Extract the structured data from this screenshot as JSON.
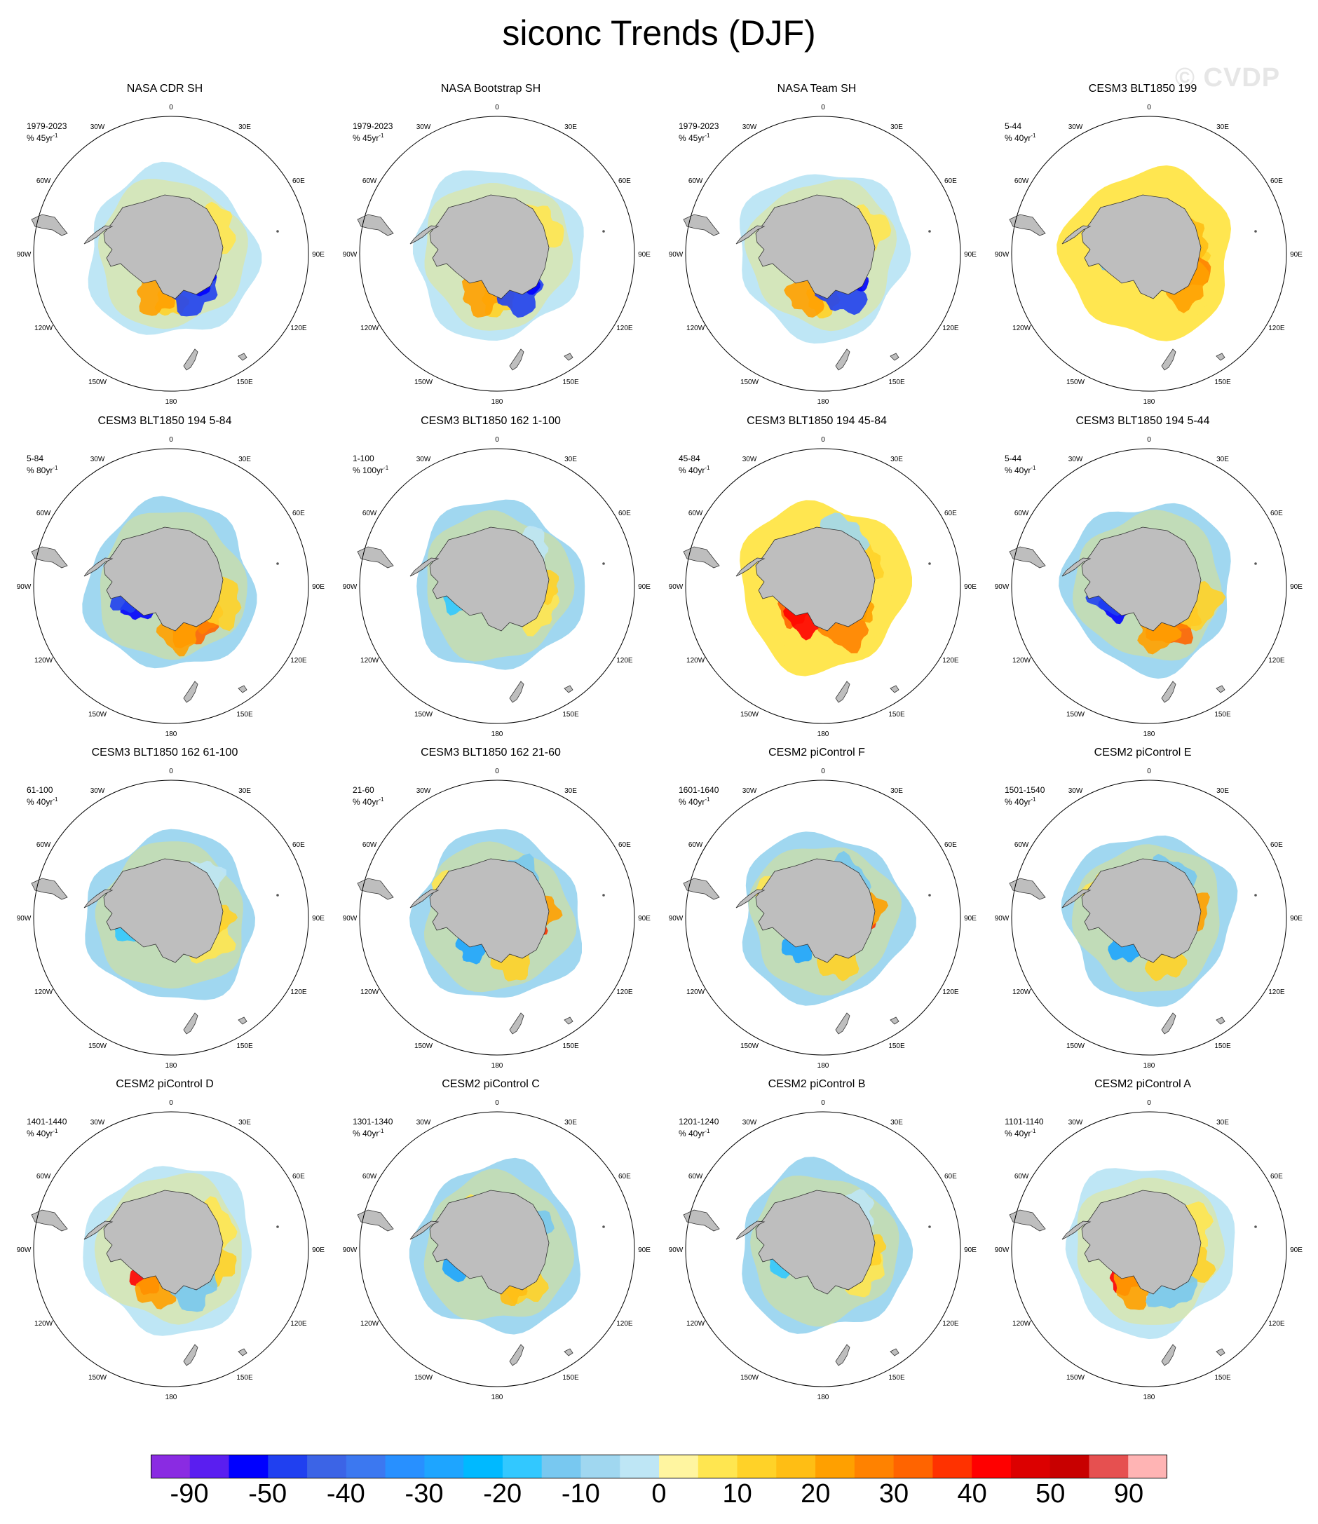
{
  "title": "siconc Trends (DJF)",
  "watermark": "© CVDP",
  "chart_data": {
    "type": "heatmap",
    "projection": "south polar stereographic",
    "variable": "siconc",
    "season": "DJF",
    "longitude_labels": [
      "0",
      "30E",
      "60E",
      "90E",
      "120E",
      "150E",
      "180",
      "150W",
      "120W",
      "90W",
      "60W",
      "30W"
    ],
    "colorbar": {
      "tick_labels": [
        "-90",
        "-50",
        "-40",
        "-30",
        "-20",
        "-10",
        "0",
        "10",
        "20",
        "30",
        "40",
        "50",
        "90"
      ],
      "colors": [
        "#8a2be2",
        "#5a1ef0",
        "#0000ff",
        "#2040f0",
        "#3c64e6",
        "#3c78f0",
        "#2890ff",
        "#1ea5ff",
        "#00b9ff",
        "#32c8ff",
        "#78c8f0",
        "#a0d7f0",
        "#bee6f5",
        "#fff5a0",
        "#ffe650",
        "#ffd228",
        "#ffbe14",
        "#ffa000",
        "#ff8200",
        "#ff6400",
        "#ff3200",
        "#ff0000",
        "#dc0000",
        "#c80000",
        "#e65050",
        "#ffb4b4"
      ]
    },
    "panels": [
      {
        "title": "NASA CDR SH",
        "years": "1979-2023",
        "units": "% 45yr",
        "pattern": "obs"
      },
      {
        "title": "NASA Bootstrap SH",
        "years": "1979-2023",
        "units": "% 45yr",
        "pattern": "obs"
      },
      {
        "title": "NASA Team SH",
        "years": "1979-2023",
        "units": "% 45yr",
        "pattern": "obs"
      },
      {
        "title": "CESM3 BLT1850 199",
        "years": "5-44",
        "units": "% 40yr",
        "pattern": "pos"
      },
      {
        "title": "CESM3 BLT1850 194 5-84",
        "years": "5-84",
        "units": "% 80yr",
        "pattern": "dipole"
      },
      {
        "title": "CESM3 BLT1850 162 1-100",
        "years": "1-100",
        "units": "% 100yr",
        "pattern": "neg"
      },
      {
        "title": "CESM3 BLT1850 194 45-84",
        "years": "45-84",
        "units": "% 40yr",
        "pattern": "strongpos"
      },
      {
        "title": "CESM3 BLT1850 194 5-44",
        "years": "5-44",
        "units": "% 40yr",
        "pattern": "dipole"
      },
      {
        "title": "CESM3 BLT1850 162 61-100",
        "years": "61-100",
        "units": "% 40yr",
        "pattern": "neg"
      },
      {
        "title": "CESM3 BLT1850 162 21-60",
        "years": "21-60",
        "units": "% 40yr",
        "pattern": "mixed"
      },
      {
        "title": "CESM2 piControl F",
        "years": "1601-1640",
        "units": "% 40yr",
        "pattern": "mixed"
      },
      {
        "title": "CESM2 piControl E",
        "years": "1501-1540",
        "units": "% 40yr",
        "pattern": "mixed"
      },
      {
        "title": "CESM2 piControl D",
        "years": "1401-1440",
        "units": "% 40yr",
        "pattern": "mixedpos"
      },
      {
        "title": "CESM2 piControl C",
        "years": "1301-1340",
        "units": "% 40yr",
        "pattern": "mixedneg"
      },
      {
        "title": "CESM2 piControl B",
        "years": "1201-1240",
        "units": "% 40yr",
        "pattern": "neg"
      },
      {
        "title": "CESM2 piControl A",
        "years": "1101-1140",
        "units": "% 40yr",
        "pattern": "mixedpos"
      }
    ]
  }
}
